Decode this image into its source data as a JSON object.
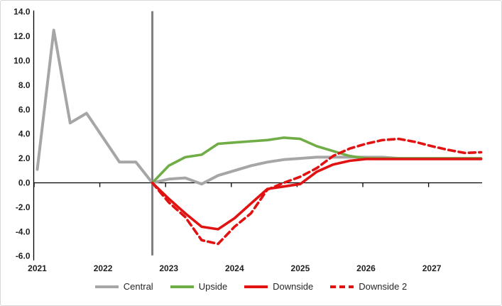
{
  "chart_data": {
    "type": "line",
    "title": "",
    "xlabel": "",
    "ylabel": "",
    "ylim": [
      -6.0,
      14.0
    ],
    "ytick_step": 2.0,
    "grid": "off",
    "legend_position": "bottom",
    "y_tick_labels": [
      "14.0",
      "12.0",
      "10.0",
      "8.0",
      "6.0",
      "4.0",
      "2.0",
      "0.0",
      "-2.0",
      "-4.0",
      "-6.0"
    ],
    "x_year_labels": [
      "2021",
      "2022",
      "2023",
      "2024",
      "2025",
      "2026",
      "2027"
    ],
    "x_categories": [
      "2021 Q1",
      "2021 Q2",
      "2021 Q3",
      "2021 Q4",
      "2022 Q1",
      "2022 Q2",
      "2022 Q3",
      "2022 Q4",
      "2023 Q1",
      "2023 Q2",
      "2023 Q3",
      "2023 Q4",
      "2024 Q1",
      "2024 Q2",
      "2024 Q3",
      "2024 Q4",
      "2025 Q1",
      "2025 Q2",
      "2025 Q3",
      "2025 Q4",
      "2026 Q1",
      "2026 Q2",
      "2026 Q3",
      "2026 Q4",
      "2027 Q1",
      "2027 Q2",
      "2027 Q3",
      "2027 Q4"
    ],
    "forecast_divider_at": "2022 Q4",
    "series": [
      {
        "name": "Central",
        "color": "#a6a6a6",
        "style": "solid",
        "values": [
          1.1,
          12.5,
          4.9,
          5.7,
          3.7,
          1.7,
          1.7,
          0.0,
          0.3,
          0.4,
          -0.1,
          0.6,
          1.0,
          1.4,
          1.7,
          1.9,
          2.0,
          2.1,
          2.1,
          2.1,
          2.1,
          2.1,
          2.0,
          2.0,
          2.0,
          2.0,
          2.0,
          2.0
        ]
      },
      {
        "name": "Upside",
        "color": "#70ad47",
        "style": "solid",
        "values": [
          null,
          null,
          null,
          null,
          null,
          null,
          null,
          0.0,
          1.4,
          2.1,
          2.3,
          3.2,
          3.3,
          3.4,
          3.5,
          3.7,
          3.6,
          3.0,
          2.6,
          2.2,
          2.0,
          2.0,
          2.0,
          2.0,
          2.0,
          2.0,
          2.0,
          2.0
        ]
      },
      {
        "name": "Downside",
        "color": "#e01212",
        "style": "solid",
        "values": [
          null,
          null,
          null,
          null,
          null,
          null,
          null,
          0.0,
          -1.3,
          -2.5,
          -3.6,
          -3.8,
          -2.9,
          -1.7,
          -0.5,
          -0.3,
          -0.1,
          0.9,
          1.5,
          1.8,
          1.95,
          1.95,
          1.95,
          1.95,
          1.95,
          1.95,
          1.95,
          1.95
        ]
      },
      {
        "name": "Downside 2",
        "color": "#e01212",
        "style": "dashed",
        "values": [
          null,
          null,
          null,
          null,
          null,
          null,
          null,
          0.0,
          -1.6,
          -2.8,
          -4.7,
          -5.0,
          -3.6,
          -2.5,
          -0.55,
          0.0,
          0.5,
          1.2,
          2.2,
          2.8,
          3.2,
          3.5,
          3.6,
          3.35,
          3.0,
          2.7,
          2.45,
          2.5
        ]
      }
    ]
  },
  "colors": {
    "axis": "#000000",
    "tick_text": "#1f1f1f",
    "forecast_divider": "#7f7f7f",
    "frame_border": "#d7d7d7",
    "background": "#ffffff"
  }
}
